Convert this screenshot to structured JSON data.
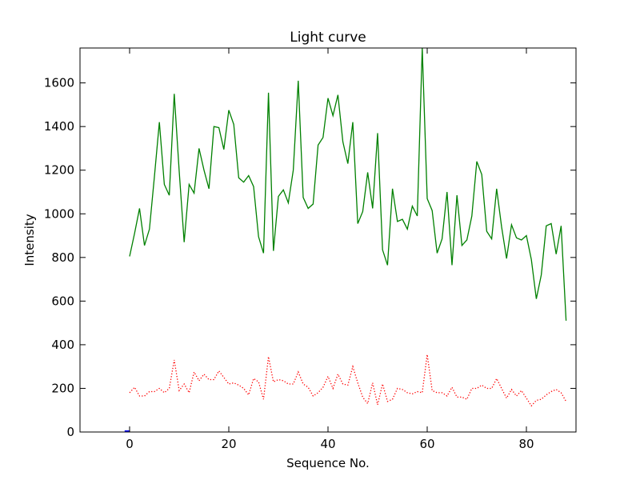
{
  "chart_data": {
    "type": "line",
    "title": "Light curve",
    "xlabel": "Sequence No.",
    "ylabel": "Intensity",
    "xlim": [
      -10,
      90
    ],
    "ylim": [
      0,
      1760
    ],
    "xticks": [
      0,
      20,
      40,
      60,
      80
    ],
    "yticks": [
      0,
      200,
      400,
      600,
      800,
      1000,
      1200,
      1400,
      1600
    ],
    "grid": false,
    "legend": "none",
    "series": [
      {
        "color": "#008000",
        "style": "solid",
        "x": [
          0,
          1,
          2,
          3,
          4,
          5,
          6,
          7,
          8,
          9,
          10,
          11,
          12,
          13,
          14,
          15,
          16,
          17,
          18,
          19,
          20,
          21,
          22,
          23,
          24,
          25,
          26,
          27,
          28,
          29,
          30,
          31,
          32,
          33,
          34,
          35,
          36,
          37,
          38,
          39,
          40,
          41,
          42,
          43,
          44,
          45,
          46,
          47,
          48,
          49,
          50,
          51,
          52,
          53,
          54,
          55,
          56,
          57,
          58,
          59,
          60,
          61,
          62,
          63,
          64,
          65,
          66,
          67,
          68,
          69,
          70,
          71,
          72,
          73,
          74,
          75,
          76,
          77,
          78,
          79,
          80,
          81,
          82,
          83,
          84,
          85,
          86,
          87,
          88
        ],
        "values": [
          805,
          910,
          1025,
          855,
          930,
          1170,
          1420,
          1135,
          1085,
          1550,
          1195,
          870,
          1135,
          1095,
          1300,
          1200,
          1115,
          1400,
          1395,
          1295,
          1475,
          1410,
          1165,
          1145,
          1175,
          1125,
          895,
          820,
          1555,
          830,
          1080,
          1110,
          1050,
          1200,
          1610,
          1075,
          1025,
          1045,
          1315,
          1350,
          1530,
          1450,
          1545,
          1330,
          1230,
          1420,
          955,
          1010,
          1190,
          1025,
          1370,
          835,
          765,
          1115,
          965,
          975,
          930,
          1035,
          990,
          1760,
          1070,
          1015,
          820,
          885,
          1100,
          765,
          1085,
          855,
          880,
          990,
          1240,
          1180,
          920,
          885,
          1115,
          940,
          795,
          950,
          890,
          880,
          900,
          790,
          610,
          720,
          945,
          955,
          815,
          945,
          510
        ]
      },
      {
        "color": "#ff0000",
        "style": "dotted",
        "x": [
          0,
          1,
          2,
          3,
          4,
          5,
          6,
          7,
          8,
          9,
          10,
          11,
          12,
          13,
          14,
          15,
          16,
          17,
          18,
          19,
          20,
          21,
          22,
          23,
          24,
          25,
          26,
          27,
          28,
          29,
          30,
          31,
          32,
          33,
          34,
          35,
          36,
          37,
          38,
          39,
          40,
          41,
          42,
          43,
          44,
          45,
          46,
          47,
          48,
          49,
          50,
          51,
          52,
          53,
          54,
          55,
          56,
          57,
          58,
          59,
          60,
          61,
          62,
          63,
          64,
          65,
          66,
          67,
          68,
          69,
          70,
          71,
          72,
          73,
          74,
          75,
          76,
          77,
          78,
          79,
          80,
          81,
          82,
          83,
          84,
          85,
          86,
          87,
          88
        ],
        "values": [
          180,
          205,
          165,
          165,
          185,
          185,
          200,
          180,
          200,
          330,
          190,
          220,
          180,
          275,
          235,
          265,
          240,
          240,
          280,
          250,
          220,
          225,
          215,
          200,
          170,
          245,
          230,
          150,
          345,
          230,
          240,
          235,
          220,
          220,
          275,
          220,
          205,
          165,
          180,
          205,
          255,
          200,
          265,
          220,
          215,
          300,
          225,
          160,
          130,
          225,
          125,
          220,
          140,
          150,
          200,
          195,
          180,
          175,
          185,
          180,
          355,
          190,
          180,
          180,
          165,
          205,
          160,
          160,
          150,
          200,
          200,
          215,
          200,
          200,
          245,
          200,
          155,
          195,
          165,
          190,
          155,
          120,
          145,
          150,
          170,
          185,
          195,
          180,
          140
        ]
      },
      {
        "color": "#0000ff",
        "style": "solid",
        "x": [
          -1,
          0
        ],
        "values": [
          3,
          3
        ]
      }
    ]
  }
}
